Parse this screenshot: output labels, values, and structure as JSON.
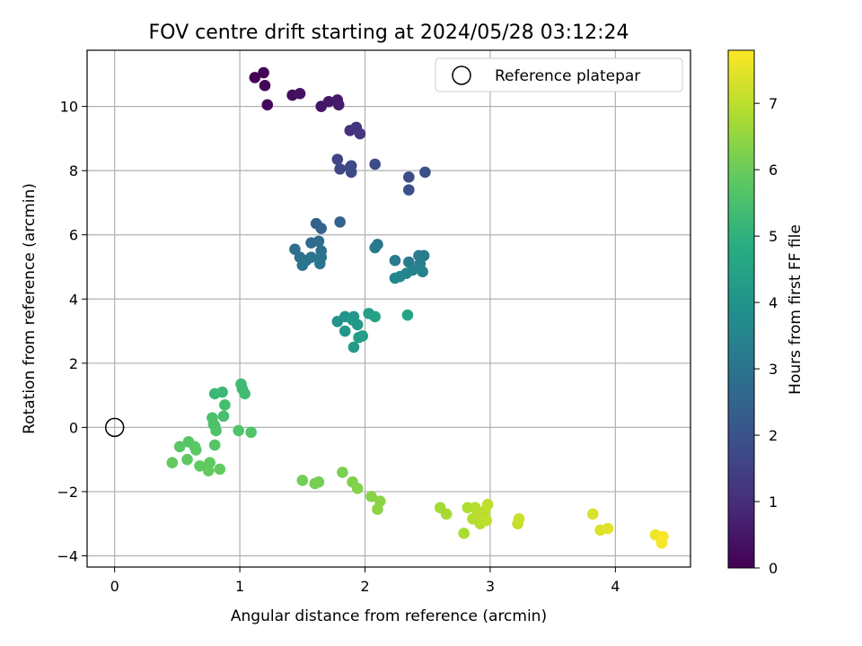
{
  "chart_data": {
    "type": "scatter",
    "title": "FOV centre drift starting at 2024/05/28 03:12:24",
    "xlabel": "Angular distance from reference (arcmin)",
    "ylabel": "Rotation from reference (arcmin)",
    "xlim": [
      -0.22,
      4.6
    ],
    "ylim": [
      -4.35,
      11.75
    ],
    "xticks": [
      0,
      1,
      2,
      3,
      4
    ],
    "yticks": [
      -4,
      -2,
      0,
      2,
      4,
      6,
      8,
      10
    ],
    "grid": true,
    "legend": {
      "placement": "top-right",
      "entries": [
        "Reference platepar"
      ]
    },
    "reference_point": {
      "x": 0,
      "y": 0,
      "label": "Reference platepar"
    },
    "colorbar": {
      "label": "Hours from first FF file",
      "colormap": "viridis",
      "range": [
        0,
        7.8
      ],
      "ticks": [
        0,
        1,
        2,
        3,
        4,
        5,
        6,
        7
      ]
    },
    "points": [
      {
        "x": 1.12,
        "y": 10.9,
        "c": 0.0
      },
      {
        "x": 1.19,
        "y": 11.05,
        "c": 0.05
      },
      {
        "x": 1.2,
        "y": 10.65,
        "c": 0.1
      },
      {
        "x": 1.22,
        "y": 10.05,
        "c": 0.15
      },
      {
        "x": 1.42,
        "y": 10.35,
        "c": 0.3
      },
      {
        "x": 1.48,
        "y": 10.4,
        "c": 0.35
      },
      {
        "x": 1.65,
        "y": 10.0,
        "c": 0.45
      },
      {
        "x": 1.71,
        "y": 10.15,
        "c": 0.5
      },
      {
        "x": 1.78,
        "y": 10.2,
        "c": 0.55
      },
      {
        "x": 1.79,
        "y": 10.05,
        "c": 0.6
      },
      {
        "x": 1.88,
        "y": 9.25,
        "c": 1.1
      },
      {
        "x": 1.93,
        "y": 9.35,
        "c": 1.15
      },
      {
        "x": 1.96,
        "y": 9.15,
        "c": 1.2
      },
      {
        "x": 1.78,
        "y": 8.35,
        "c": 1.6
      },
      {
        "x": 1.8,
        "y": 8.05,
        "c": 1.65
      },
      {
        "x": 1.88,
        "y": 8.1,
        "c": 1.7
      },
      {
        "x": 1.89,
        "y": 7.95,
        "c": 1.75
      },
      {
        "x": 1.89,
        "y": 8.15,
        "c": 1.7
      },
      {
        "x": 2.08,
        "y": 8.2,
        "c": 1.8
      },
      {
        "x": 2.35,
        "y": 7.8,
        "c": 1.85
      },
      {
        "x": 2.35,
        "y": 7.4,
        "c": 1.9
      },
      {
        "x": 2.48,
        "y": 7.95,
        "c": 1.9
      },
      {
        "x": 1.61,
        "y": 6.35,
        "c": 2.4
      },
      {
        "x": 1.65,
        "y": 6.2,
        "c": 2.45
      },
      {
        "x": 1.8,
        "y": 6.4,
        "c": 2.5
      },
      {
        "x": 1.57,
        "y": 5.75,
        "c": 2.7
      },
      {
        "x": 1.63,
        "y": 5.8,
        "c": 2.75
      },
      {
        "x": 1.44,
        "y": 5.55,
        "c": 2.8
      },
      {
        "x": 1.65,
        "y": 5.5,
        "c": 2.85
      },
      {
        "x": 1.48,
        "y": 5.3,
        "c": 2.9
      },
      {
        "x": 1.53,
        "y": 5.2,
        "c": 2.95
      },
      {
        "x": 1.57,
        "y": 5.3,
        "c": 2.95
      },
      {
        "x": 1.5,
        "y": 5.05,
        "c": 3.0
      },
      {
        "x": 1.64,
        "y": 5.1,
        "c": 3.05
      },
      {
        "x": 1.65,
        "y": 5.3,
        "c": 3.0
      },
      {
        "x": 2.08,
        "y": 5.6,
        "c": 3.1
      },
      {
        "x": 2.1,
        "y": 5.7,
        "c": 3.1
      },
      {
        "x": 2.24,
        "y": 5.2,
        "c": 3.2
      },
      {
        "x": 2.35,
        "y": 5.15,
        "c": 3.25
      },
      {
        "x": 2.43,
        "y": 5.35,
        "c": 3.2
      },
      {
        "x": 2.47,
        "y": 5.35,
        "c": 3.2
      },
      {
        "x": 2.44,
        "y": 5.1,
        "c": 3.3
      },
      {
        "x": 2.46,
        "y": 4.85,
        "c": 3.4
      },
      {
        "x": 2.38,
        "y": 4.9,
        "c": 3.45
      },
      {
        "x": 2.33,
        "y": 4.8,
        "c": 3.5
      },
      {
        "x": 2.28,
        "y": 4.7,
        "c": 3.55
      },
      {
        "x": 2.24,
        "y": 4.65,
        "c": 3.6
      },
      {
        "x": 1.78,
        "y": 3.3,
        "c": 4.0
      },
      {
        "x": 1.84,
        "y": 3.45,
        "c": 4.05
      },
      {
        "x": 1.84,
        "y": 3.0,
        "c": 4.1
      },
      {
        "x": 1.9,
        "y": 3.35,
        "c": 4.1
      },
      {
        "x": 1.91,
        "y": 3.45,
        "c": 4.15
      },
      {
        "x": 1.94,
        "y": 3.2,
        "c": 4.2
      },
      {
        "x": 1.91,
        "y": 2.5,
        "c": 4.25
      },
      {
        "x": 1.95,
        "y": 2.8,
        "c": 4.3
      },
      {
        "x": 1.98,
        "y": 2.85,
        "c": 4.35
      },
      {
        "x": 2.03,
        "y": 3.55,
        "c": 4.4
      },
      {
        "x": 2.08,
        "y": 3.45,
        "c": 4.45
      },
      {
        "x": 2.34,
        "y": 3.5,
        "c": 4.5
      },
      {
        "x": 0.8,
        "y": 1.05,
        "c": 5.2
      },
      {
        "x": 0.86,
        "y": 1.1,
        "c": 5.25
      },
      {
        "x": 1.01,
        "y": 1.35,
        "c": 5.3
      },
      {
        "x": 1.02,
        "y": 1.2,
        "c": 5.3
      },
      {
        "x": 1.04,
        "y": 1.05,
        "c": 5.35
      },
      {
        "x": 0.88,
        "y": 0.7,
        "c": 5.4
      },
      {
        "x": 0.87,
        "y": 0.35,
        "c": 5.45
      },
      {
        "x": 0.78,
        "y": 0.3,
        "c": 5.5
      },
      {
        "x": 0.79,
        "y": 0.1,
        "c": 5.55
      },
      {
        "x": 0.8,
        "y": 0.05,
        "c": 5.55
      },
      {
        "x": 0.81,
        "y": -0.1,
        "c": 5.6
      },
      {
        "x": 0.99,
        "y": -0.1,
        "c": 5.6
      },
      {
        "x": 1.09,
        "y": -0.15,
        "c": 5.65
      },
      {
        "x": 0.8,
        "y": -0.55,
        "c": 5.7
      },
      {
        "x": 0.59,
        "y": -0.45,
        "c": 5.7
      },
      {
        "x": 0.52,
        "y": -0.6,
        "c": 5.75
      },
      {
        "x": 0.64,
        "y": -0.6,
        "c": 5.75
      },
      {
        "x": 0.65,
        "y": -0.7,
        "c": 5.8
      },
      {
        "x": 0.58,
        "y": -1.0,
        "c": 5.8
      },
      {
        "x": 0.68,
        "y": -1.2,
        "c": 5.85
      },
      {
        "x": 0.76,
        "y": -1.1,
        "c": 5.85
      },
      {
        "x": 0.75,
        "y": -1.35,
        "c": 5.9
      },
      {
        "x": 0.84,
        "y": -1.3,
        "c": 5.9
      },
      {
        "x": 0.46,
        "y": -1.1,
        "c": 5.9
      },
      {
        "x": 1.5,
        "y": -1.65,
        "c": 6.1
      },
      {
        "x": 1.6,
        "y": -1.75,
        "c": 6.15
      },
      {
        "x": 1.63,
        "y": -1.7,
        "c": 6.15
      },
      {
        "x": 1.82,
        "y": -1.4,
        "c": 6.2
      },
      {
        "x": 1.9,
        "y": -1.7,
        "c": 6.25
      },
      {
        "x": 1.94,
        "y": -1.9,
        "c": 6.3
      },
      {
        "x": 2.05,
        "y": -2.15,
        "c": 6.35
      },
      {
        "x": 2.1,
        "y": -2.55,
        "c": 6.4
      },
      {
        "x": 2.12,
        "y": -2.3,
        "c": 6.4
      },
      {
        "x": 2.6,
        "y": -2.5,
        "c": 6.7
      },
      {
        "x": 2.65,
        "y": -2.7,
        "c": 6.75
      },
      {
        "x": 2.79,
        "y": -3.3,
        "c": 6.8
      },
      {
        "x": 2.82,
        "y": -2.5,
        "c": 6.85
      },
      {
        "x": 2.86,
        "y": -2.85,
        "c": 6.9
      },
      {
        "x": 2.88,
        "y": -2.5,
        "c": 6.9
      },
      {
        "x": 2.9,
        "y": -2.7,
        "c": 6.95
      },
      {
        "x": 2.92,
        "y": -3.0,
        "c": 6.95
      },
      {
        "x": 2.94,
        "y": -2.75,
        "c": 7.0
      },
      {
        "x": 2.96,
        "y": -2.6,
        "c": 7.0
      },
      {
        "x": 2.97,
        "y": -2.9,
        "c": 7.05
      },
      {
        "x": 2.98,
        "y": -2.4,
        "c": 7.05
      },
      {
        "x": 3.22,
        "y": -3.0,
        "c": 7.1
      },
      {
        "x": 3.23,
        "y": -2.85,
        "c": 7.15
      },
      {
        "x": 3.82,
        "y": -2.7,
        "c": 7.35
      },
      {
        "x": 3.88,
        "y": -3.2,
        "c": 7.4
      },
      {
        "x": 3.94,
        "y": -3.15,
        "c": 7.45
      },
      {
        "x": 4.32,
        "y": -3.35,
        "c": 7.6
      },
      {
        "x": 4.37,
        "y": -3.6,
        "c": 7.7
      },
      {
        "x": 4.38,
        "y": -3.4,
        "c": 7.75
      }
    ]
  }
}
